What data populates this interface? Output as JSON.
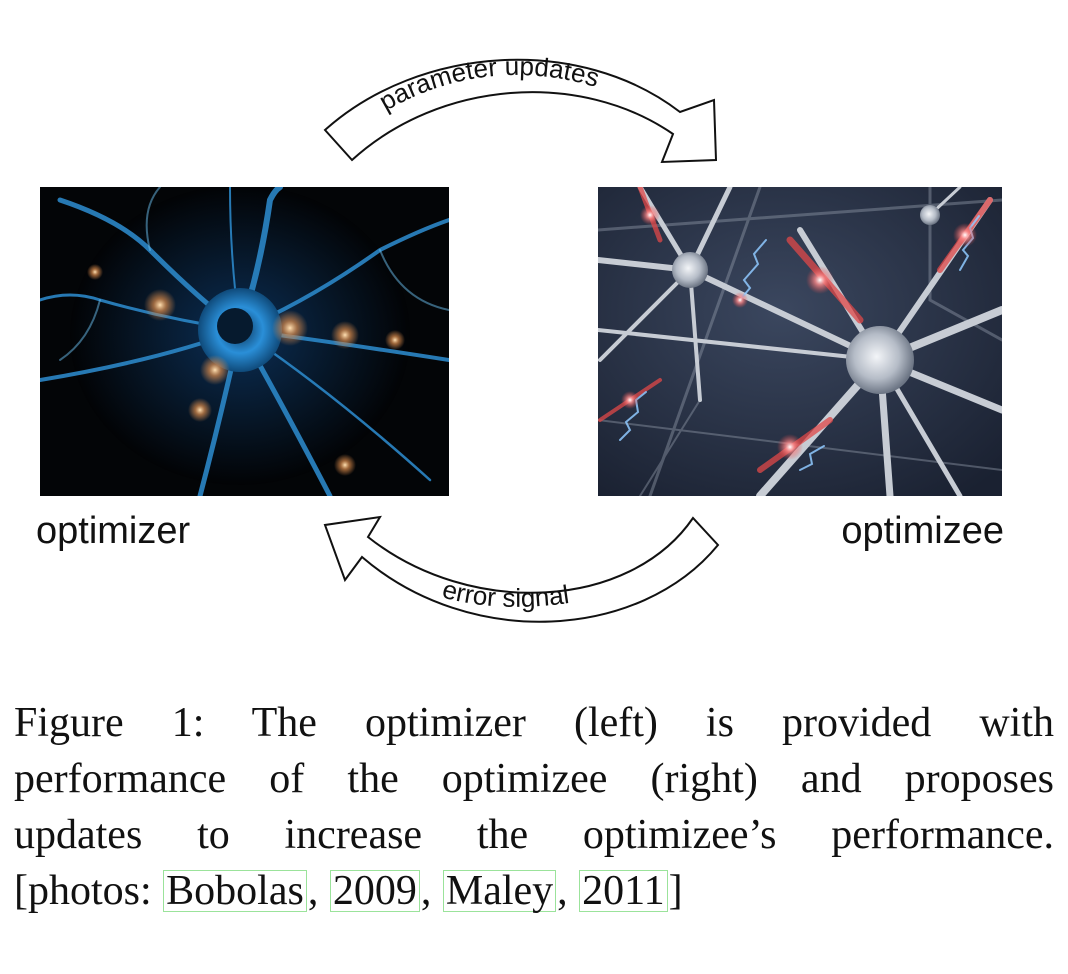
{
  "figure": {
    "left_image_caption": "optimizer",
    "right_image_caption": "optimizee",
    "top_arrow_label": "parameter updates",
    "bottom_arrow_label": "error signal",
    "colors": {
      "left_photo_bg": "#030507",
      "left_neuron": "#2f8fd0",
      "right_photo_bg": "#2a3346",
      "right_neuron": "#c9ced6",
      "spark_red": "#e05050",
      "cite_box": "#9be39b"
    }
  },
  "caption": {
    "line1": "Figure 1:  The optimizer (left) is provided with",
    "line2": "performance of the optimizee (right) and proposes",
    "line3": "updates to increase the optimizee’s performance.",
    "line4_prefix": "[photos: ",
    "citations": [
      "Bobolas",
      "2009",
      "Maley",
      "2011"
    ],
    "line4_suffix": "]"
  }
}
